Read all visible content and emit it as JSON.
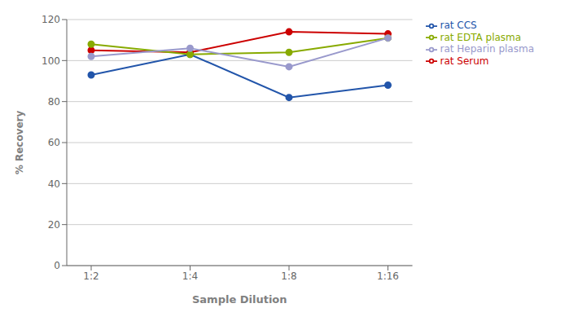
{
  "chart_data": {
    "type": "line",
    "xlabel": "Sample Dilution",
    "ylabel": "% Recovery",
    "categories": [
      "1:2",
      "1:4",
      "1:8",
      "1:16"
    ],
    "series": [
      {
        "name": "rat CCS",
        "color": "#2255aa",
        "marker": "circle",
        "values": [
          93,
          103,
          82,
          88
        ]
      },
      {
        "name": "rat Serum",
        "color": "#cc0000",
        "marker": "circle",
        "values": [
          105,
          104,
          114,
          113
        ]
      },
      {
        "name": "rat EDTA plasma",
        "color": "#88aa00",
        "marker": "circle",
        "values": [
          108,
          103,
          104,
          111
        ]
      },
      {
        "name": "rat Heparin plasma",
        "color": "#9999cc",
        "marker": "circle",
        "values": [
          102,
          106,
          97,
          111
        ]
      }
    ],
    "ylim": [
      0,
      120
    ],
    "yticks": [
      0,
      20,
      40,
      60,
      80,
      100,
      120
    ],
    "grid": true,
    "legend": "right"
  }
}
